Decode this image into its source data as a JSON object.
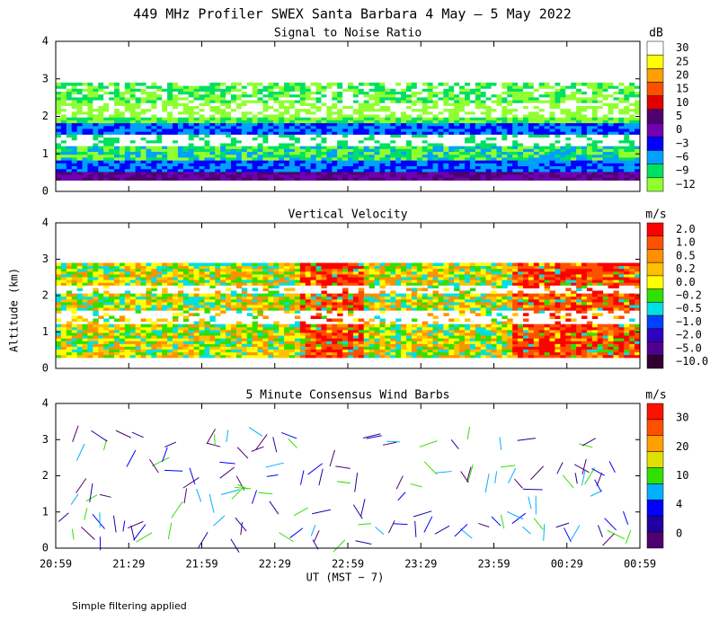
{
  "header": {
    "title": "449 MHz Profiler SWEX Santa Barbara  4 May —  5 May 2022"
  },
  "y_axis_label": "Altitude (km)",
  "x_axis_label": "UT  (MST − 7)",
  "x_tick_labels": [
    "20:59",
    "21:29",
    "21:59",
    "22:29",
    "22:59",
    "23:29",
    "23:59",
    "00:29",
    "00:59"
  ],
  "footer": "Simple filtering applied",
  "panels": [
    {
      "subtitle": "Signal to Noise Ratio",
      "unit": "dB",
      "ylim": [
        0,
        4
      ],
      "yticks": [
        0,
        1,
        2,
        3,
        4
      ],
      "colorbar": {
        "labels": [
          "30",
          "25",
          "20",
          "15",
          "10",
          "5",
          "0",
          "−3",
          "−6",
          "−9",
          "−12"
        ],
        "colors": [
          "#ffffff",
          "#ffff00",
          "#ffa000",
          "#ff5000",
          "#e00000",
          "#500070",
          "#7000b0",
          "#0000ff",
          "#00a0ff",
          "#00e060",
          "#90ff30"
        ]
      }
    },
    {
      "subtitle": "Vertical Velocity",
      "unit": "m/s",
      "ylim": [
        0,
        4
      ],
      "yticks": [
        0,
        1,
        2,
        3,
        4
      ],
      "colorbar": {
        "labels": [
          "2.0",
          "1.0",
          "0.5",
          "0.2",
          "0.0",
          "−0.2",
          "−0.5",
          "−1.0",
          "−2.0",
          "−5.0",
          "−10.0"
        ],
        "colors": [
          "#ff0000",
          "#ff5000",
          "#ff9000",
          "#ffc000",
          "#ffff00",
          "#30e000",
          "#00e0e0",
          "#0040ff",
          "#3000c0",
          "#500090",
          "#300030"
        ]
      }
    },
    {
      "subtitle": "5 Minute Consensus Wind Barbs",
      "unit": "m/s",
      "ylim": [
        0,
        4
      ],
      "yticks": [
        0,
        1,
        2,
        3,
        4
      ],
      "colorbar": {
        "labels": [
          "30",
          "20",
          "10",
          "4",
          "0"
        ],
        "colors": [
          "#ff1000",
          "#ff5000",
          "#ffa000",
          "#e0e000",
          "#30e000",
          "#00b0ff",
          "#0000ff",
          "#2000a0",
          "#500070"
        ]
      }
    }
  ]
}
